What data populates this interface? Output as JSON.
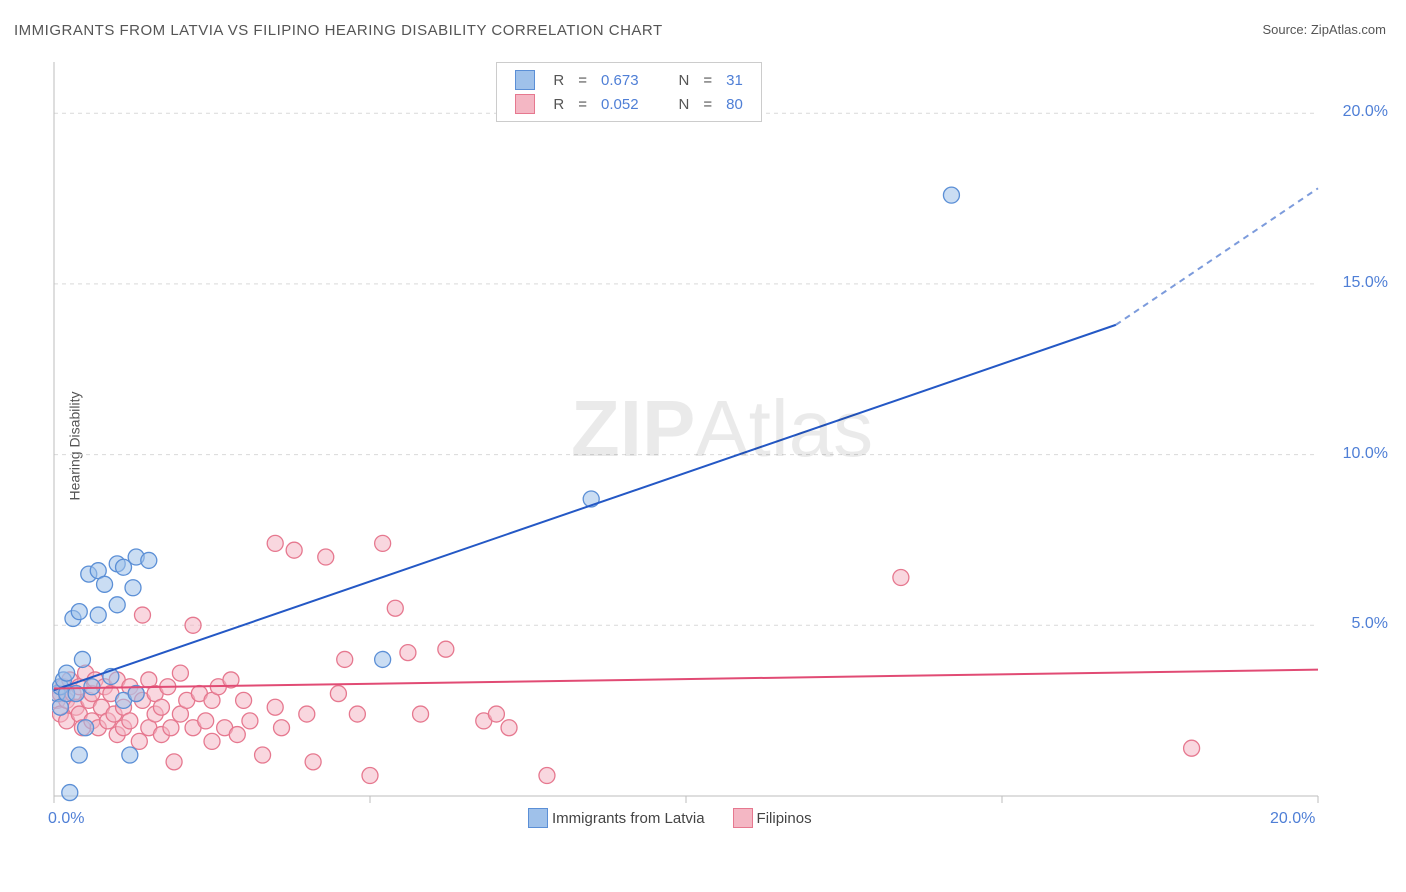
{
  "title": "IMMIGRANTS FROM LATVIA VS FILIPINO HEARING DISABILITY CORRELATION CHART",
  "source_label": "Source: ",
  "source_name": "ZipAtlas.com",
  "ylabel": "Hearing Disability",
  "watermark_a": "ZIP",
  "watermark_b": "Atlas",
  "chart": {
    "type": "scatter",
    "xlim": [
      0,
      20
    ],
    "ylim": [
      0,
      21.5
    ],
    "x_ticks": [
      0,
      5,
      10,
      15,
      20
    ],
    "x_tick_labels": [
      "0.0%",
      "",
      "",
      "",
      "20.0%"
    ],
    "y_ticks": [
      0,
      5,
      10,
      15,
      20
    ],
    "y_tick_labels": [
      "0.0%",
      "5.0%",
      "10.0%",
      "15.0%",
      "20.0%"
    ],
    "grid_color": "#d9d9d9",
    "axis_color": "#bdbdbd",
    "background": "#ffffff",
    "marker_radius": 8,
    "marker_opacity": 0.55,
    "y_tick_label_color": "#4f7fd6",
    "x_tick_label_color": "#4f7fd6",
    "series": [
      {
        "name": "Immigrants from Latvia",
        "color_fill": "#9fc1ea",
        "color_stroke": "#5b8fd6",
        "R": "0.673",
        "N": "31",
        "regression": {
          "x1": 0,
          "y1": 3.1,
          "x2": 16.8,
          "y2": 13.8,
          "dash_from_x": 16.8,
          "dash_to_x": 20,
          "dash_to_y": 17.8,
          "color": "#2458c5",
          "width": 2
        },
        "points": [
          [
            0.05,
            3.0
          ],
          [
            0.1,
            3.2
          ],
          [
            0.1,
            2.6
          ],
          [
            0.15,
            3.4
          ],
          [
            0.2,
            3.0
          ],
          [
            0.2,
            3.6
          ],
          [
            0.25,
            0.1
          ],
          [
            0.3,
            5.2
          ],
          [
            0.35,
            3.0
          ],
          [
            0.4,
            5.4
          ],
          [
            0.4,
            1.2
          ],
          [
            0.45,
            4.0
          ],
          [
            0.5,
            2.0
          ],
          [
            0.55,
            6.5
          ],
          [
            0.6,
            3.2
          ],
          [
            0.7,
            6.6
          ],
          [
            0.7,
            5.3
          ],
          [
            0.8,
            6.2
          ],
          [
            0.9,
            3.5
          ],
          [
            1.0,
            6.8
          ],
          [
            1.0,
            5.6
          ],
          [
            1.1,
            6.7
          ],
          [
            1.1,
            2.8
          ],
          [
            1.2,
            1.2
          ],
          [
            1.25,
            6.1
          ],
          [
            1.3,
            7.0
          ],
          [
            1.3,
            3.0
          ],
          [
            1.5,
            6.9
          ],
          [
            5.2,
            4.0
          ],
          [
            8.5,
            8.7
          ],
          [
            14.2,
            17.6
          ]
        ]
      },
      {
        "name": "Filipinos",
        "color_fill": "#f4b7c4",
        "color_stroke": "#e6788f",
        "R": "0.052",
        "N": "80",
        "regression": {
          "x1": 0,
          "y1": 3.15,
          "x2": 20,
          "y2": 3.7,
          "color": "#e14b74",
          "width": 2
        },
        "points": [
          [
            0.05,
            2.8
          ],
          [
            0.1,
            3.0
          ],
          [
            0.1,
            2.4
          ],
          [
            0.15,
            3.2
          ],
          [
            0.2,
            2.8
          ],
          [
            0.2,
            2.2
          ],
          [
            0.25,
            3.4
          ],
          [
            0.3,
            3.0
          ],
          [
            0.35,
            2.6
          ],
          [
            0.4,
            3.2
          ],
          [
            0.4,
            2.4
          ],
          [
            0.45,
            2.0
          ],
          [
            0.5,
            3.6
          ],
          [
            0.55,
            2.8
          ],
          [
            0.6,
            3.0
          ],
          [
            0.6,
            2.2
          ],
          [
            0.65,
            3.4
          ],
          [
            0.7,
            2.0
          ],
          [
            0.75,
            2.6
          ],
          [
            0.8,
            3.2
          ],
          [
            0.85,
            2.2
          ],
          [
            0.9,
            3.0
          ],
          [
            0.95,
            2.4
          ],
          [
            1.0,
            1.8
          ],
          [
            1.0,
            3.4
          ],
          [
            1.1,
            2.6
          ],
          [
            1.1,
            2.0
          ],
          [
            1.2,
            3.2
          ],
          [
            1.2,
            2.2
          ],
          [
            1.3,
            3.0
          ],
          [
            1.35,
            1.6
          ],
          [
            1.4,
            2.8
          ],
          [
            1.4,
            5.3
          ],
          [
            1.5,
            2.0
          ],
          [
            1.5,
            3.4
          ],
          [
            1.6,
            2.4
          ],
          [
            1.6,
            3.0
          ],
          [
            1.7,
            1.8
          ],
          [
            1.7,
            2.6
          ],
          [
            1.8,
            3.2
          ],
          [
            1.85,
            2.0
          ],
          [
            1.9,
            1.0
          ],
          [
            2.0,
            3.6
          ],
          [
            2.0,
            2.4
          ],
          [
            2.1,
            2.8
          ],
          [
            2.2,
            5.0
          ],
          [
            2.2,
            2.0
          ],
          [
            2.3,
            3.0
          ],
          [
            2.4,
            2.2
          ],
          [
            2.5,
            2.8
          ],
          [
            2.5,
            1.6
          ],
          [
            2.6,
            3.2
          ],
          [
            2.7,
            2.0
          ],
          [
            2.8,
            3.4
          ],
          [
            2.9,
            1.8
          ],
          [
            3.0,
            2.8
          ],
          [
            3.1,
            2.2
          ],
          [
            3.3,
            1.2
          ],
          [
            3.5,
            2.6
          ],
          [
            3.5,
            7.4
          ],
          [
            3.6,
            2.0
          ],
          [
            3.8,
            7.2
          ],
          [
            4.0,
            2.4
          ],
          [
            4.1,
            1.0
          ],
          [
            4.3,
            7.0
          ],
          [
            4.5,
            3.0
          ],
          [
            4.6,
            4.0
          ],
          [
            4.8,
            2.4
          ],
          [
            5.0,
            0.6
          ],
          [
            5.2,
            7.4
          ],
          [
            5.4,
            5.5
          ],
          [
            5.6,
            4.2
          ],
          [
            5.8,
            2.4
          ],
          [
            6.2,
            4.3
          ],
          [
            6.8,
            2.2
          ],
          [
            7.0,
            2.4
          ],
          [
            7.2,
            2.0
          ],
          [
            7.8,
            0.6
          ],
          [
            13.4,
            6.4
          ],
          [
            18.0,
            1.4
          ]
        ]
      }
    ],
    "legend_bottom_items": [
      {
        "label": "Immigrants from Latvia",
        "fill": "#9fc1ea",
        "stroke": "#5b8fd6"
      },
      {
        "label": "Filipinos",
        "fill": "#f4b7c4",
        "stroke": "#e6788f"
      }
    ],
    "legend_top_labels": {
      "R": "R",
      "N": "N",
      "eq": "="
    }
  }
}
